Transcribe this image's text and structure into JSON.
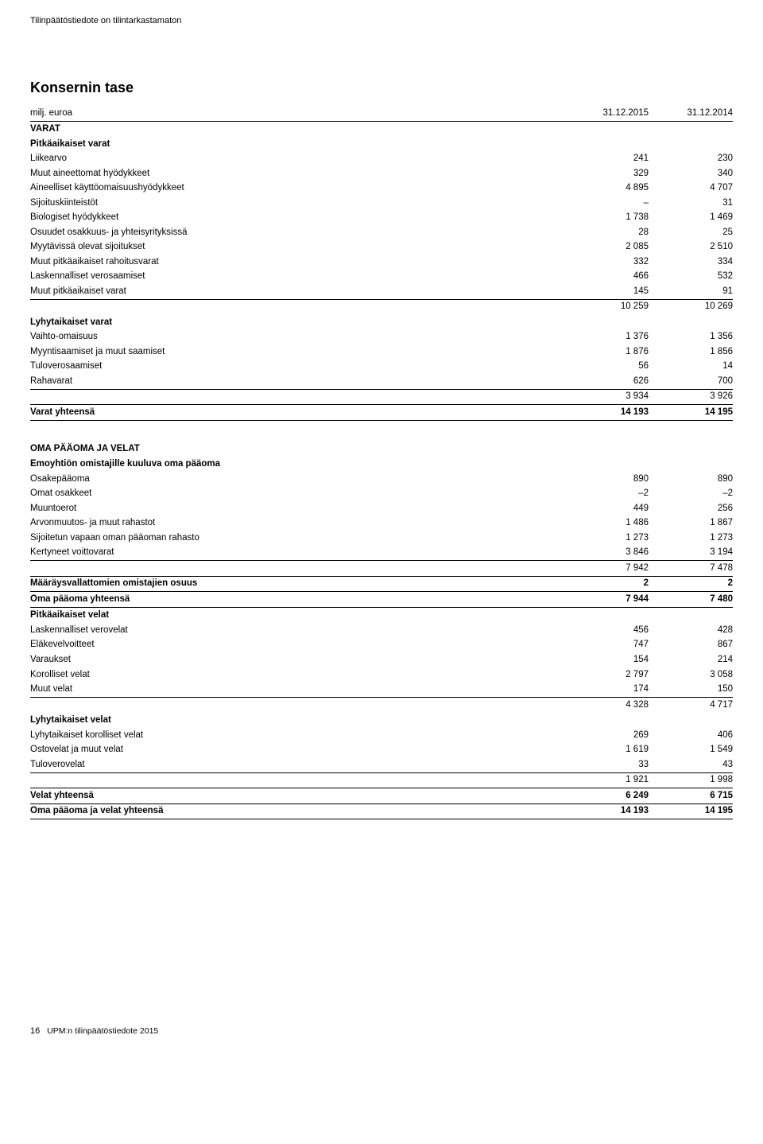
{
  "top_note": "Tilinpäätöstiedote on tilintarkastamaton",
  "page_title": "Konsernin tase",
  "col_header": {
    "label": "milj. euroa",
    "c1": "31.12.2015",
    "c2": "31.12.2014"
  },
  "sections": {
    "varat": "VARAT",
    "pitkaaikaiset_varat": "Pitkäaikaiset varat",
    "lyhytaikaiset_varat": "Lyhytaikaiset varat",
    "oma_paaoma": "OMA PÄÄOMA JA VELAT",
    "emoyhtion": "Emoyhtiön omistajille kuuluva oma pääoma",
    "pitkaaikaiset_velat": "Pitkäaikaiset velat",
    "lyhytaikaiset_velat": "Lyhytaikaiset velat"
  },
  "rows": {
    "liikearvo": {
      "l": "Liikearvo",
      "c1": "241",
      "c2": "230"
    },
    "muut_aine": {
      "l": "Muut aineettomat hyödykkeet",
      "c1": "329",
      "c2": "340"
    },
    "aineelliset": {
      "l": "Aineelliset käyttöomaisuushyödykkeet",
      "c1": "4 895",
      "c2": "4 707"
    },
    "sijoituskiint": {
      "l": "Sijoituskiinteistöt",
      "c1": "–",
      "c2": "31"
    },
    "biologiset": {
      "l": "Biologiset hyödykkeet",
      "c1": "1 738",
      "c2": "1 469"
    },
    "osuudet": {
      "l": "Osuudet osakkuus- ja yhteisyrityksissä",
      "c1": "28",
      "c2": "25"
    },
    "myytavissa": {
      "l": "Myytävissä olevat sijoitukset",
      "c1": "2 085",
      "c2": "2 510"
    },
    "muut_pitka_rah": {
      "l": "Muut pitkäaikaiset rahoitusvarat",
      "c1": "332",
      "c2": "334"
    },
    "lask_vero": {
      "l": "Laskennalliset verosaamiset",
      "c1": "466",
      "c2": "532"
    },
    "muut_pitka_varat": {
      "l": "Muut pitkäaikaiset varat",
      "c1": "145",
      "c2": "91"
    },
    "pitka_sum": {
      "l": "",
      "c1": "10 259",
      "c2": "10 269"
    },
    "vaihto": {
      "l": "Vaihto-omaisuus",
      "c1": "1 376",
      "c2": "1 356"
    },
    "myyntis": {
      "l": "Myyntisaamiset ja muut saamiset",
      "c1": "1 876",
      "c2": "1 856"
    },
    "tulovero": {
      "l": "Tuloverosaamiset",
      "c1": "56",
      "c2": "14"
    },
    "rahavarat": {
      "l": "Rahavarat",
      "c1": "626",
      "c2": "700"
    },
    "lyhyt_sum": {
      "l": "",
      "c1": "3 934",
      "c2": "3 926"
    },
    "varat_yht": {
      "l": "Varat yhteensä",
      "c1": "14 193",
      "c2": "14 195"
    },
    "osakep": {
      "l": "Osakepääoma",
      "c1": "890",
      "c2": "890"
    },
    "omat_os": {
      "l": "Omat osakkeet",
      "c1": "–2",
      "c2": "–2"
    },
    "muunto": {
      "l": "Muuntoerot",
      "c1": "449",
      "c2": "256"
    },
    "arvonm": {
      "l": "Arvonmuutos- ja muut rahastot",
      "c1": "1 486",
      "c2": "1 867"
    },
    "sijoit": {
      "l": "Sijoitetun vapaan oman pääoman rahasto",
      "c1": "1 273",
      "c2": "1 273"
    },
    "kertyneet": {
      "l": "Kertyneet voittovarat",
      "c1": "3 846",
      "c2": "3 194"
    },
    "kert_sum": {
      "l": "",
      "c1": "7 942",
      "c2": "7 478"
    },
    "maaraysv": {
      "l": "Määräysvallattomien omistajien osuus",
      "c1": "2",
      "c2": "2"
    },
    "oma_paaoma_yht": {
      "l": "Oma pääoma yhteensä",
      "c1": "7 944",
      "c2": "7 480"
    },
    "lask_verov": {
      "l": "Laskennalliset verovelat",
      "c1": "456",
      "c2": "428"
    },
    "elakev": {
      "l": "Eläkevelvoitteet",
      "c1": "747",
      "c2": "867"
    },
    "varaukset": {
      "l": "Varaukset",
      "c1": "154",
      "c2": "214"
    },
    "korolliset": {
      "l": "Korolliset velat",
      "c1": "2 797",
      "c2": "3 058"
    },
    "muut_velat": {
      "l": "Muut velat",
      "c1": "174",
      "c2": "150"
    },
    "pitka_velat_sum": {
      "l": "",
      "c1": "4 328",
      "c2": "4 717"
    },
    "lyhkorv": {
      "l": "Lyhytaikaiset korolliset velat",
      "c1": "269",
      "c2": "406"
    },
    "ostov": {
      "l": "Ostovelat ja muut velat",
      "c1": "1 619",
      "c2": "1 549"
    },
    "tuloverov": {
      "l": "Tuloverovelat",
      "c1": "33",
      "c2": "43"
    },
    "lyhyt_velat_sum": {
      "l": "",
      "c1": "1 921",
      "c2": "1 998"
    },
    "velat_yht": {
      "l": "Velat yhteensä",
      "c1": "6 249",
      "c2": "6 715"
    },
    "oma_paaoma_velat_yht": {
      "l": "Oma pääoma ja velat yhteensä",
      "c1": "14 193",
      "c2": "14 195"
    }
  },
  "footer": {
    "page": "16",
    "text": "UPM:n tilinpäätöstiedote 2015"
  }
}
